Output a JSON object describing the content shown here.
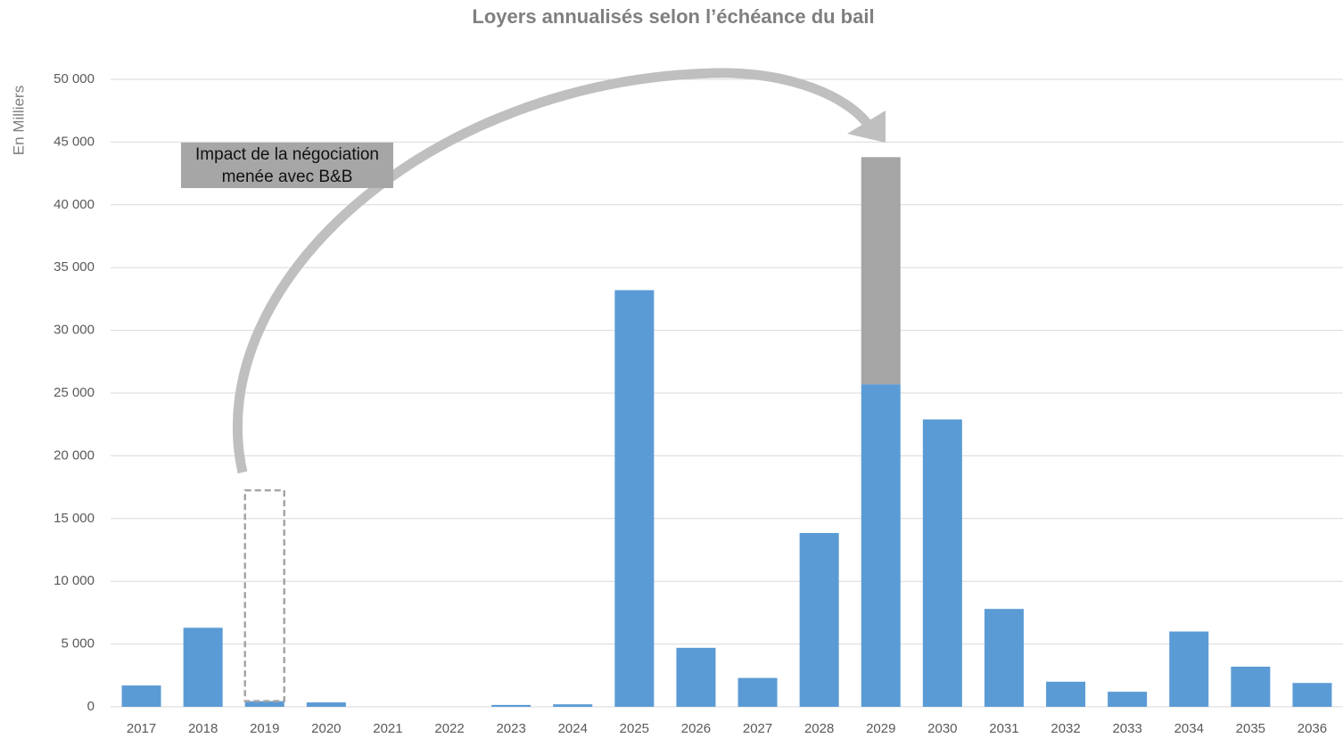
{
  "chart_data": {
    "type": "stacked_bar",
    "title": "Loyers annualisés selon l’échéance du bail",
    "ylabel": "En Milliers",
    "annotation": "Impact de la négociation menée avec B&B",
    "categories": [
      "2017",
      "2018",
      "2019",
      "2020",
      "2021",
      "2022",
      "2023",
      "2024",
      "2025",
      "2026",
      "2027",
      "2028",
      "2029",
      "2030",
      "2031",
      "2032",
      "2033",
      "2034",
      "2035",
      "2036"
    ],
    "series": [
      {
        "color": "#5b9bd5",
        "values": [
          1700,
          6300,
          450,
          350,
          0,
          0,
          150,
          200,
          33200,
          4700,
          2300,
          13850,
          25700,
          22900,
          7800,
          2000,
          1200,
          6000,
          3200,
          1900
        ]
      },
      {
        "color": "#a5a5a5",
        "values": [
          null,
          null,
          null,
          null,
          null,
          null,
          null,
          null,
          null,
          null,
          null,
          null,
          18100,
          null,
          null,
          null,
          null,
          null,
          null,
          null
        ]
      },
      {
        "color": "#a5a5a5",
        "dashed": true,
        "values": [
          null,
          null,
          16800,
          null,
          null,
          null,
          null,
          null,
          null,
          null,
          null,
          null,
          null,
          null,
          null,
          null,
          null,
          null,
          null,
          null
        ]
      }
    ],
    "ylim": [
      0,
      50000
    ],
    "yticks": [
      0,
      {
        "value": 5000,
        "label": "5 000"
      },
      {
        "value": 10000,
        "label": "10 000"
      },
      {
        "value": 15000,
        "label": "15 000"
      },
      {
        "value": 20000,
        "label": "20 000"
      },
      {
        "value": 25000,
        "label": "25 000"
      },
      {
        "value": 30000,
        "label": "30 000"
      },
      {
        "value": 35000,
        "label": "35 000"
      },
      {
        "value": 40000,
        "label": "40 000"
      },
      {
        "value": 45000,
        "label": "45 000"
      },
      {
        "value": 50000,
        "label": "50 000"
      }
    ],
    "grid": true
  }
}
